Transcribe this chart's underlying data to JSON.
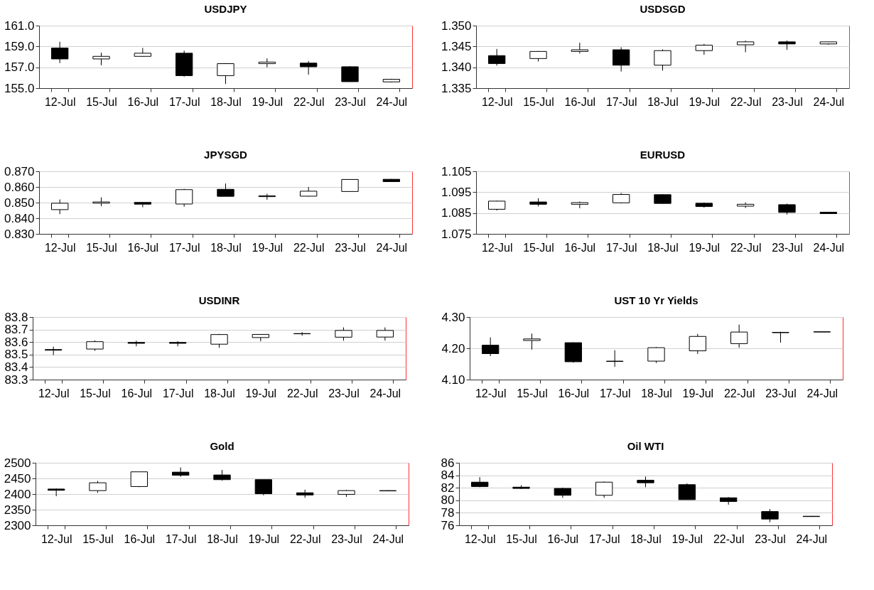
{
  "chart_data": [
    {
      "type": "candlestick",
      "title": "USDJPY",
      "categories": [
        "12-Jul",
        "15-Jul",
        "16-Jul",
        "17-Jul",
        "18-Jul",
        "19-Jul",
        "22-Jul",
        "23-Jul",
        "24-Jul"
      ],
      "ohlc": [
        [
          158.85,
          159.45,
          157.4,
          157.8
        ],
        [
          157.8,
          158.4,
          157.2,
          158.05
        ],
        [
          158.05,
          158.85,
          158.0,
          158.35
        ],
        [
          158.35,
          158.6,
          156.1,
          156.2
        ],
        [
          156.2,
          157.4,
          155.4,
          157.35
        ],
        [
          157.35,
          157.85,
          157.0,
          157.5
        ],
        [
          157.4,
          157.6,
          156.3,
          157.05
        ],
        [
          157.05,
          157.1,
          155.6,
          155.62
        ],
        [
          155.6,
          155.9,
          155.55,
          155.85
        ]
      ],
      "ylim": [
        155,
        161
      ],
      "yticks": [
        {
          "value": 155,
          "label": "155.0"
        },
        {
          "value": 157,
          "label": "157.0"
        },
        {
          "value": 159,
          "label": "159.0"
        },
        {
          "value": 161,
          "label": "161.0"
        }
      ],
      "grid": "y"
    },
    {
      "type": "candlestick",
      "title": "USDSGD",
      "categories": [
        "12-Jul",
        "15-Jul",
        "16-Jul",
        "17-Jul",
        "18-Jul",
        "19-Jul",
        "22-Jul",
        "23-Jul",
        "24-Jul"
      ],
      "ohlc": [
        [
          1.3428,
          1.3444,
          1.3404,
          1.3409
        ],
        [
          1.3421,
          1.3439,
          1.3414,
          1.3438
        ],
        [
          1.3438,
          1.3459,
          1.3433,
          1.3442
        ],
        [
          1.3442,
          1.3448,
          1.339,
          1.3405
        ],
        [
          1.3405,
          1.3443,
          1.3392,
          1.344
        ],
        [
          1.344,
          1.3456,
          1.343,
          1.3453
        ],
        [
          1.3454,
          1.3464,
          1.3436,
          1.3461
        ],
        [
          1.3461,
          1.3464,
          1.3442,
          1.3456
        ],
        [
          1.3456,
          1.3461,
          1.3454,
          1.3461
        ]
      ],
      "ylim": [
        1.335,
        1.35
      ],
      "yticks": [
        {
          "value": 1.335,
          "label": "1.335"
        },
        {
          "value": 1.34,
          "label": "1.340"
        },
        {
          "value": 1.345,
          "label": "1.345"
        },
        {
          "value": 1.35,
          "label": "1.350"
        }
      ],
      "grid": "y"
    },
    {
      "type": "candlestick",
      "title": "JPYSGD",
      "categories": [
        "12-Jul",
        "15-Jul",
        "16-Jul",
        "17-Jul",
        "18-Jul",
        "19-Jul",
        "22-Jul",
        "23-Jul",
        "24-Jul"
      ],
      "ohlc": [
        [
          0.8455,
          0.852,
          0.8426,
          0.8496
        ],
        [
          0.8496,
          0.8533,
          0.8477,
          0.8504
        ],
        [
          0.8501,
          0.8501,
          0.847,
          0.849
        ],
        [
          0.8491,
          0.8588,
          0.8474,
          0.8583
        ],
        [
          0.8585,
          0.8622,
          0.854,
          0.854
        ],
        [
          0.8538,
          0.8557,
          0.8518,
          0.8543
        ],
        [
          0.8541,
          0.86,
          0.8538,
          0.8573
        ],
        [
          0.8571,
          0.8648,
          0.857,
          0.8648
        ],
        [
          0.8649,
          0.8651,
          0.8634,
          0.8634
        ]
      ],
      "ylim": [
        0.83,
        0.87
      ],
      "yticks": [
        {
          "value": 0.83,
          "label": "0.830"
        },
        {
          "value": 0.84,
          "label": "0.840"
        },
        {
          "value": 0.85,
          "label": "0.850"
        },
        {
          "value": 0.86,
          "label": "0.860"
        },
        {
          "value": 0.87,
          "label": "0.870"
        }
      ],
      "grid": "y"
    },
    {
      "type": "candlestick",
      "title": "EURUSD",
      "categories": [
        "12-Jul",
        "15-Jul",
        "16-Jul",
        "17-Jul",
        "18-Jul",
        "19-Jul",
        "22-Jul",
        "23-Jul",
        "24-Jul"
      ],
      "ohlc": [
        [
          1.0868,
          1.0909,
          1.0862,
          1.0907
        ],
        [
          1.0903,
          1.0921,
          1.0882,
          1.0892
        ],
        [
          1.0892,
          1.0905,
          1.0873,
          1.09
        ],
        [
          1.0899,
          1.0946,
          1.0896,
          1.0939
        ],
        [
          1.0938,
          1.094,
          1.0894,
          1.0896
        ],
        [
          1.0897,
          1.09,
          1.0876,
          1.0881
        ],
        [
          1.0883,
          1.0901,
          1.0874,
          1.0892
        ],
        [
          1.089,
          1.0895,
          1.0843,
          1.0853
        ],
        [
          1.0854,
          1.0854,
          1.0847,
          1.0847
        ]
      ],
      "ylim": [
        1.075,
        1.105
      ],
      "yticks": [
        {
          "value": 1.075,
          "label": "1.075"
        },
        {
          "value": 1.085,
          "label": "1.085"
        },
        {
          "value": 1.095,
          "label": "1.095"
        },
        {
          "value": 1.105,
          "label": "1.105"
        }
      ],
      "grid": "y"
    },
    {
      "type": "candlestick",
      "title": "USDINR",
      "categories": [
        "12-Jul",
        "15-Jul",
        "16-Jul",
        "17-Jul",
        "18-Jul",
        "19-Jul",
        "22-Jul",
        "23-Jul",
        "24-Jul"
      ],
      "ohlc": [
        [
          83.54,
          83.563,
          83.496,
          83.535
        ],
        [
          83.544,
          83.613,
          83.53,
          83.603
        ],
        [
          83.597,
          83.611,
          83.566,
          83.59
        ],
        [
          83.597,
          83.607,
          83.566,
          83.59
        ],
        [
          83.583,
          83.665,
          83.554,
          83.66
        ],
        [
          83.636,
          83.664,
          83.606,
          83.661
        ],
        [
          83.666,
          83.679,
          83.65,
          83.668
        ],
        [
          83.639,
          83.717,
          83.611,
          83.693
        ],
        [
          83.64,
          83.717,
          83.612,
          83.693
        ]
      ],
      "ylim": [
        83.3,
        83.8
      ],
      "yticks": [
        83.3,
        83.4,
        83.5,
        83.6,
        83.7,
        83.8
      ],
      "grid": "y"
    },
    {
      "type": "candlestick",
      "title": "UST 10 Yr Yields",
      "categories": [
        "12-Jul",
        "15-Jul",
        "16-Jul",
        "17-Jul",
        "18-Jul",
        "19-Jul",
        "22-Jul",
        "23-Jul",
        "24-Jul"
      ],
      "ohlc": [
        [
          4.21,
          4.235,
          4.175,
          4.183
        ],
        [
          4.225,
          4.247,
          4.196,
          4.23
        ],
        [
          4.218,
          4.219,
          4.154,
          4.157
        ],
        [
          4.159,
          4.194,
          4.141,
          4.158
        ],
        [
          4.159,
          4.204,
          4.153,
          4.202
        ],
        [
          4.192,
          4.246,
          4.182,
          4.238
        ],
        [
          4.215,
          4.276,
          4.202,
          4.252
        ],
        [
          4.251,
          4.253,
          4.218,
          4.25
        ],
        [
          4.252,
          4.253,
          4.252,
          4.253
        ]
      ],
      "ylim": [
        4.1,
        4.3
      ],
      "yticks": [
        {
          "value": 4.1,
          "label": "4.10"
        },
        {
          "value": 4.2,
          "label": "4.20"
        },
        {
          "value": 4.3,
          "label": "4.30"
        }
      ],
      "grid": "y"
    },
    {
      "type": "candlestick",
      "title": "Gold",
      "categories": [
        "12-Jul",
        "15-Jul",
        "16-Jul",
        "17-Jul",
        "18-Jul",
        "19-Jul",
        "22-Jul",
        "23-Jul",
        "24-Jul"
      ],
      "ohlc": [
        [
          2416,
          2418,
          2393,
          2412
        ],
        [
          2411,
          2442,
          2404,
          2436
        ],
        [
          2424,
          2471,
          2422,
          2471
        ],
        [
          2470,
          2485,
          2455,
          2460
        ],
        [
          2461,
          2477,
          2443,
          2446
        ],
        [
          2446,
          2446,
          2396,
          2401
        ],
        [
          2404,
          2414,
          2388,
          2397
        ],
        [
          2399,
          2413,
          2391,
          2411
        ],
        [
          2410,
          2412,
          2409,
          2411
        ]
      ],
      "ylim": [
        2300,
        2500
      ],
      "yticks": [
        2300,
        2350,
        2400,
        2450,
        2500
      ],
      "grid": "y"
    },
    {
      "type": "candlestick",
      "title": "Oil WTI",
      "categories": [
        "12-Jul",
        "15-Jul",
        "16-Jul",
        "17-Jul",
        "18-Jul",
        "19-Jul",
        "22-Jul",
        "23-Jul",
        "24-Jul"
      ],
      "ohlc": [
        [
          82.9,
          83.7,
          82.1,
          82.2
        ],
        [
          82.1,
          82.4,
          81.8,
          81.9
        ],
        [
          81.9,
          82.0,
          80.4,
          80.8
        ],
        [
          80.8,
          83.0,
          80.4,
          82.9
        ],
        [
          83.2,
          83.8,
          82.1,
          82.8
        ],
        [
          82.5,
          82.7,
          80.1,
          80.1
        ],
        [
          80.4,
          80.5,
          79.3,
          79.8
        ],
        [
          78.2,
          78.6,
          76.5,
          77.0
        ],
        [
          77.45,
          77.5,
          77.4,
          77.4
        ]
      ],
      "ylim": [
        76,
        86
      ],
      "yticks": [
        76,
        78,
        80,
        82,
        84,
        86
      ],
      "grid": "y"
    }
  ]
}
